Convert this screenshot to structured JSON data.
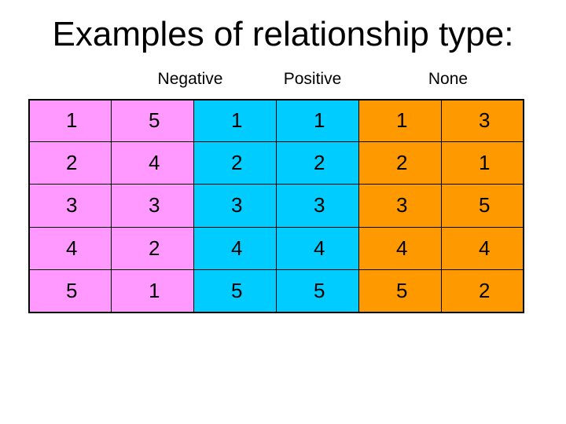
{
  "title": "Examples of relationship type:",
  "groups": {
    "negative": "Negative",
    "positive": "Positive",
    "none": "None"
  },
  "colors": {
    "negative": "#ff99ff",
    "positive": "#00ccff",
    "none": "#ff9900"
  },
  "table": {
    "negative": [
      [
        "1",
        "5"
      ],
      [
        "2",
        "4"
      ],
      [
        "3",
        "3"
      ],
      [
        "4",
        "2"
      ],
      [
        "5",
        "1"
      ]
    ],
    "positive": [
      [
        "1",
        "1"
      ],
      [
        "2",
        "2"
      ],
      [
        "3",
        "3"
      ],
      [
        "4",
        "4"
      ],
      [
        "5",
        "5"
      ]
    ],
    "none": [
      [
        "1",
        "3"
      ],
      [
        "2",
        "1"
      ],
      [
        "3",
        "5"
      ],
      [
        "4",
        "4"
      ],
      [
        "5",
        "2"
      ]
    ]
  }
}
